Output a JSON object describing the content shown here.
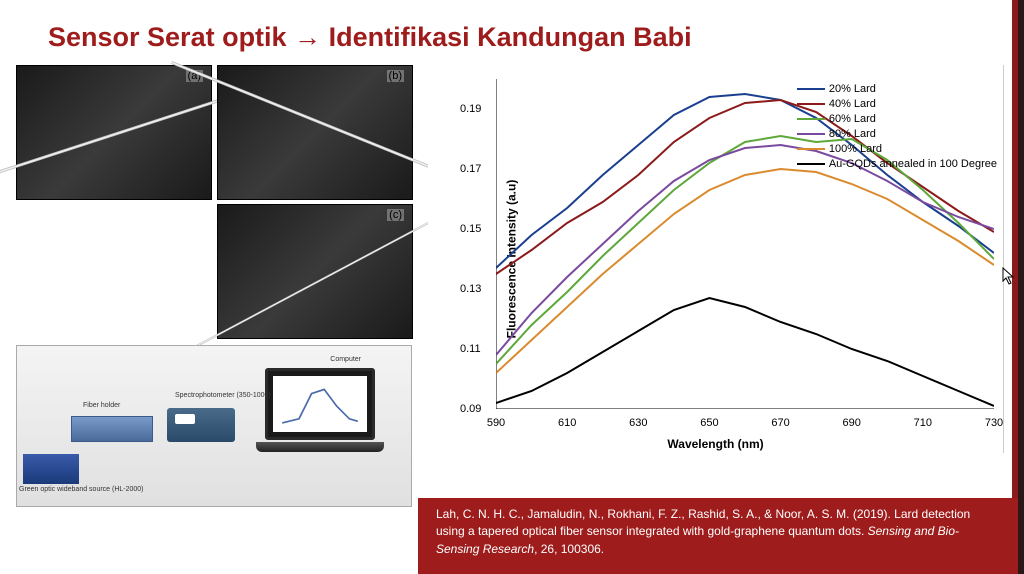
{
  "title": {
    "part1": "Sensor Serat optik ",
    "arrow": "→",
    "part2": " Identifikasi Kandungan Babi",
    "color": "#9e1c1c"
  },
  "sem": {
    "labels": {
      "a": "(a)",
      "b": "(b)",
      "c": "(c)"
    }
  },
  "equipment": {
    "spectro": "Spectrophotometer (350-1000)",
    "holder": "Fiber holder",
    "source": "Green optic wideband source (HL-2000)",
    "computer": "Computer"
  },
  "chart": {
    "type": "line",
    "xlabel": "Wavelength (nm)",
    "ylabel": "Fluorescence Intensity (a.u)",
    "xlim": [
      590,
      730
    ],
    "ylim": [
      0.09,
      0.2
    ],
    "xticks": [
      590,
      610,
      630,
      650,
      670,
      690,
      710,
      730
    ],
    "yticks": [
      0.09,
      0.11,
      0.13,
      0.15,
      0.17,
      0.19
    ],
    "background_color": "#ffffff",
    "axis_color": "#000000",
    "label_fontsize": 12,
    "tick_fontsize": 11,
    "series": [
      {
        "name": "20% Lard",
        "color": "#1a3f8f",
        "width": 2,
        "x": [
          590,
          600,
          610,
          620,
          630,
          640,
          650,
          660,
          670,
          680,
          690,
          700,
          710,
          720,
          730
        ],
        "y": [
          0.137,
          0.148,
          0.157,
          0.168,
          0.178,
          0.188,
          0.194,
          0.195,
          0.193,
          0.187,
          0.178,
          0.168,
          0.159,
          0.151,
          0.142
        ]
      },
      {
        "name": "40% Lard",
        "color": "#8b1a1a",
        "width": 2,
        "x": [
          590,
          600,
          610,
          620,
          630,
          640,
          650,
          660,
          670,
          680,
          690,
          700,
          710,
          720,
          730
        ],
        "y": [
          0.135,
          0.143,
          0.152,
          0.159,
          0.168,
          0.179,
          0.187,
          0.192,
          0.193,
          0.189,
          0.181,
          0.172,
          0.164,
          0.156,
          0.149
        ]
      },
      {
        "name": "60% Lard",
        "color": "#5ea83a",
        "width": 2,
        "x": [
          590,
          600,
          610,
          620,
          630,
          640,
          650,
          660,
          670,
          680,
          690,
          700,
          710,
          720,
          730
        ],
        "y": [
          0.105,
          0.118,
          0.129,
          0.141,
          0.152,
          0.163,
          0.172,
          0.179,
          0.181,
          0.179,
          0.18,
          0.173,
          0.163,
          0.152,
          0.14
        ]
      },
      {
        "name": "80% Lard",
        "color": "#7a4a9e",
        "width": 2,
        "x": [
          590,
          600,
          610,
          620,
          630,
          640,
          650,
          660,
          670,
          680,
          690,
          700,
          710,
          720,
          730
        ],
        "y": [
          0.108,
          0.122,
          0.134,
          0.145,
          0.156,
          0.166,
          0.173,
          0.177,
          0.178,
          0.176,
          0.172,
          0.166,
          0.159,
          0.154,
          0.15
        ]
      },
      {
        "name": "100% Lard",
        "color": "#d98b2e",
        "width": 2,
        "x": [
          590,
          600,
          610,
          620,
          630,
          640,
          650,
          660,
          670,
          680,
          690,
          700,
          710,
          720,
          730
        ],
        "y": [
          0.102,
          0.113,
          0.124,
          0.135,
          0.145,
          0.155,
          0.163,
          0.168,
          0.17,
          0.169,
          0.165,
          0.16,
          0.153,
          0.146,
          0.138
        ]
      },
      {
        "name": "Au-GQDs annealed in 100 Degree",
        "color": "#000000",
        "width": 2,
        "x": [
          590,
          600,
          610,
          620,
          630,
          640,
          650,
          660,
          670,
          680,
          690,
          700,
          710,
          720,
          730
        ],
        "y": [
          0.092,
          0.096,
          0.102,
          0.109,
          0.116,
          0.123,
          0.127,
          0.124,
          0.119,
          0.115,
          0.11,
          0.106,
          0.101,
          0.096,
          0.091
        ]
      }
    ],
    "legend": {
      "position": "top-right"
    }
  },
  "citation": {
    "text1": "Lah, C. N. H. C., Jamaludin, N., Rokhani, F. Z., Rashid, S. A., & Noor, A. S. M. (2019). Lard detection using a tapered optical fiber sensor integrated with gold-graphene quantum dots. ",
    "journal": "Sensing and Bio-Sensing Research",
    "text2": ", 26, 100306.",
    "background": "#9e1c1c",
    "color": "#ffffff"
  }
}
